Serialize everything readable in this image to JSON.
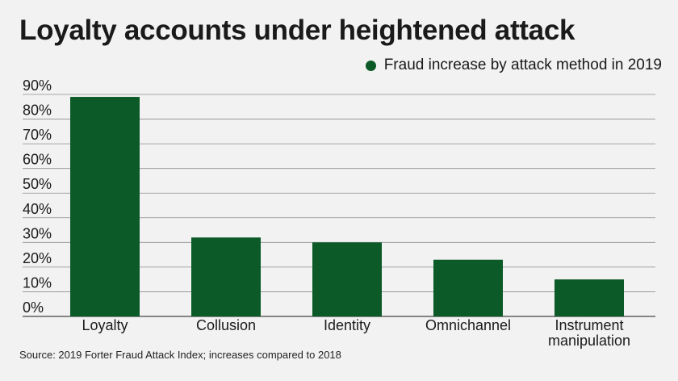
{
  "chart_data": {
    "type": "bar",
    "title": "Loyalty accounts under heightened attack",
    "categories": [
      "Loyalty",
      "Collusion",
      "Identity",
      "Omnichannel",
      "Instrument\nmanipulation"
    ],
    "series": [
      {
        "name": "Fraud increase by attack method in 2019",
        "values": [
          89,
          32,
          30,
          23,
          15
        ]
      }
    ],
    "ylim": [
      0,
      90
    ],
    "yticks": [
      "0%",
      "10%",
      "20%",
      "30%",
      "40%",
      "50%",
      "60%",
      "70%",
      "80%",
      "90%"
    ],
    "grid": true,
    "legend_position": "top-right",
    "bar_color": "#0b5a27",
    "source": "Source: 2019 Forter Fraud Attack Index; increases compared to 2018"
  }
}
